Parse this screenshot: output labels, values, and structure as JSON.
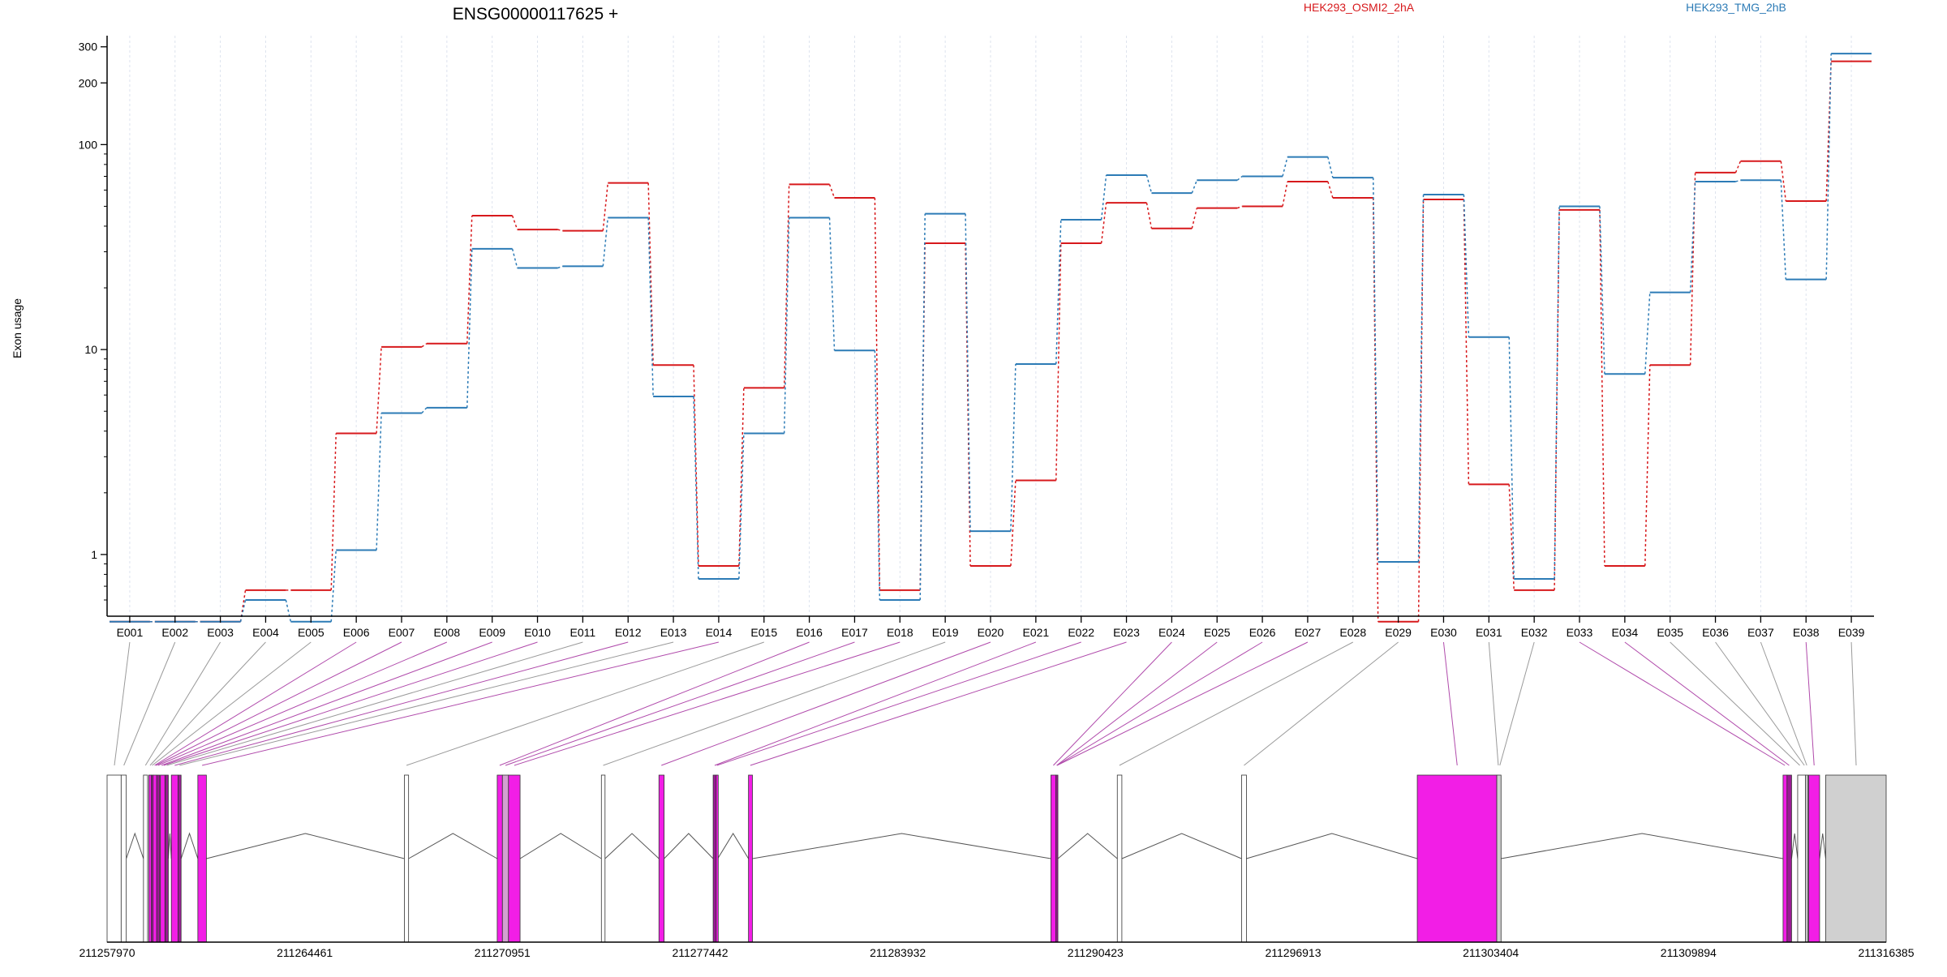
{
  "chart_data": {
    "type": "line",
    "title": "ENSG00000117625 +",
    "ylabel": "Exon usage",
    "yscale": "log",
    "ylim": [
      0.5,
      340
    ],
    "yticks": [
      1,
      10,
      100,
      200,
      300
    ],
    "categories": [
      "E001",
      "E002",
      "E003",
      "E004",
      "E005",
      "E006",
      "E007",
      "E008",
      "E009",
      "E010",
      "E011",
      "E012",
      "E013",
      "E014",
      "E015",
      "E016",
      "E017",
      "E018",
      "E019",
      "E020",
      "E021",
      "E022",
      "E023",
      "E024",
      "E025",
      "E026",
      "E027",
      "E028",
      "E029",
      "E030",
      "E031",
      "E032",
      "E033",
      "E034",
      "E035",
      "E036",
      "E037",
      "E038",
      "E039"
    ],
    "series": [
      {
        "name": "HEK293_OSMI2_2hA",
        "color": "#d7191c",
        "values": [
          0.47,
          0.47,
          0.47,
          0.67,
          0.67,
          3.9,
          10.3,
          10.7,
          45,
          38.5,
          38,
          65,
          8.4,
          0.88,
          6.5,
          64,
          55,
          0.67,
          33,
          0.88,
          2.3,
          33,
          52,
          39,
          49,
          50,
          66,
          55,
          0.47,
          54,
          2.2,
          0.67,
          48,
          0.88,
          8.4,
          73,
          83,
          53,
          255
        ]
      },
      {
        "name": "HEK293_TMG_2hB",
        "color": "#2c7bb6",
        "values": [
          0.47,
          0.47,
          0.47,
          0.6,
          0.47,
          1.05,
          4.9,
          5.2,
          31,
          25,
          25.5,
          44,
          5.9,
          0.76,
          3.9,
          44,
          9.9,
          0.6,
          46,
          1.3,
          8.5,
          43,
          71,
          58,
          67,
          70,
          87,
          69,
          0.92,
          57,
          11.5,
          0.76,
          50,
          7.6,
          19,
          66,
          67,
          22,
          278
        ]
      }
    ],
    "genomic_ticks": [
      "211257970",
      "211264461",
      "211270951",
      "211277442",
      "211283932",
      "211290423",
      "211296913",
      "211303404",
      "211309894",
      "211316385"
    ],
    "gene_range": [
      211257970,
      211316385
    ],
    "exons": [
      {
        "start": 211257970,
        "end": 211258432,
        "fill": "#ffffff"
      },
      {
        "start": 211258432,
        "end": 211258600,
        "fill": "#ffffff"
      },
      {
        "start": 211259165,
        "end": 211259300,
        "fill": "#ffffff"
      },
      {
        "start": 211259340,
        "end": 211259420,
        "fill": "#f21ee6"
      },
      {
        "start": 211259420,
        "end": 211259480,
        "fill": "#9a1a94"
      },
      {
        "start": 211259480,
        "end": 211259600,
        "fill": "#f21ee6"
      },
      {
        "start": 211259600,
        "end": 211259700,
        "fill": "#9a1a94"
      },
      {
        "start": 211259720,
        "end": 211259870,
        "fill": "#f21ee6"
      },
      {
        "start": 211259880,
        "end": 211259980,
        "fill": "#9a1a94"
      },
      {
        "start": 211260080,
        "end": 211260300,
        "fill": "#f21ee6"
      },
      {
        "start": 211260300,
        "end": 211260400,
        "fill": "#9a1a94"
      },
      {
        "start": 211260950,
        "end": 211261230,
        "fill": "#f21ee6"
      },
      {
        "start": 211267730,
        "end": 211267870,
        "fill": "#ffffff"
      },
      {
        "start": 211270780,
        "end": 211270950,
        "fill": "#f21ee6"
      },
      {
        "start": 211270950,
        "end": 211271150,
        "fill": "#d4a0d2"
      },
      {
        "start": 211271150,
        "end": 211271530,
        "fill": "#f21ee6"
      },
      {
        "start": 211274200,
        "end": 211274320,
        "fill": "#ffffff"
      },
      {
        "start": 211276090,
        "end": 211276260,
        "fill": "#f21ee6"
      },
      {
        "start": 211277870,
        "end": 211277970,
        "fill": "#9a1a94"
      },
      {
        "start": 211277970,
        "end": 211278020,
        "fill": "#f21ee6"
      },
      {
        "start": 211279030,
        "end": 211279160,
        "fill": "#f21ee6"
      },
      {
        "start": 211288960,
        "end": 211289120,
        "fill": "#f21ee6"
      },
      {
        "start": 211289120,
        "end": 211289190,
        "fill": "#9a1a94"
      },
      {
        "start": 211291140,
        "end": 211291290,
        "fill": "#ffffff"
      },
      {
        "start": 211295220,
        "end": 211295380,
        "fill": "#ffffff"
      },
      {
        "start": 211300990,
        "end": 211303600,
        "fill": "#f21ee6"
      },
      {
        "start": 211303600,
        "end": 211303740,
        "fill": "#d0d0d0"
      },
      {
        "start": 211313000,
        "end": 211313130,
        "fill": "#f21ee6"
      },
      {
        "start": 211313130,
        "end": 211313280,
        "fill": "#9a1a94"
      },
      {
        "start": 211313480,
        "end": 211313740,
        "fill": "#ffffff"
      },
      {
        "start": 211313740,
        "end": 211313820,
        "fill": "#d0d0d0"
      },
      {
        "start": 211313840,
        "end": 211314200,
        "fill": "#f21ee6"
      },
      {
        "start": 211314400,
        "end": 211316385,
        "fill": "#d0d0d0"
      }
    ],
    "exon_connections": [
      {
        "exon": "E001",
        "gpos": 211258210,
        "color": "#9a9a9a"
      },
      {
        "exon": "E002",
        "gpos": 211258520,
        "color": "#9a9a9a"
      },
      {
        "exon": "E003",
        "gpos": 211259230,
        "color": "#9a9a9a"
      },
      {
        "exon": "E004",
        "gpos": 211259380,
        "color": "#9a9a9a"
      },
      {
        "exon": "E005",
        "gpos": 211259450,
        "color": "#9a9a9a"
      },
      {
        "exon": "E006",
        "gpos": 211259530,
        "color": "#b04aab"
      },
      {
        "exon": "E007",
        "gpos": 211259570,
        "color": "#b04aab"
      },
      {
        "exon": "E008",
        "gpos": 211259640,
        "color": "#b04aab"
      },
      {
        "exon": "E009",
        "gpos": 211259760,
        "color": "#b04aab"
      },
      {
        "exon": "E010",
        "gpos": 211259830,
        "color": "#b04aab"
      },
      {
        "exon": "E011",
        "gpos": 211259930,
        "color": "#9a9a9a"
      },
      {
        "exon": "E012",
        "gpos": 211260190,
        "color": "#b04aab"
      },
      {
        "exon": "E013",
        "gpos": 211260350,
        "color": "#9a9a9a"
      },
      {
        "exon": "E014",
        "gpos": 211261090,
        "color": "#b04aab"
      },
      {
        "exon": "E015",
        "gpos": 211267800,
        "color": "#9a9a9a"
      },
      {
        "exon": "E016",
        "gpos": 211270860,
        "color": "#b04aab"
      },
      {
        "exon": "E017",
        "gpos": 211271050,
        "color": "#b04aab"
      },
      {
        "exon": "E018",
        "gpos": 211271340,
        "color": "#b04aab"
      },
      {
        "exon": "E019",
        "gpos": 211274260,
        "color": "#9a9a9a"
      },
      {
        "exon": "E020",
        "gpos": 211276170,
        "color": "#b04aab"
      },
      {
        "exon": "E021",
        "gpos": 211277920,
        "color": "#b04aab"
      },
      {
        "exon": "E022",
        "gpos": 211277995,
        "color": "#b04aab"
      },
      {
        "exon": "E023",
        "gpos": 211279090,
        "color": "#b04aab"
      },
      {
        "exon": "E024",
        "gpos": 211289040,
        "color": "#b04aab"
      },
      {
        "exon": "E025",
        "gpos": 211289150,
        "color": "#b04aab"
      },
      {
        "exon": "E026",
        "gpos": 211289155,
        "color": "#b04aab"
      },
      {
        "exon": "E027",
        "gpos": 211289160,
        "color": "#b04aab"
      },
      {
        "exon": "E028",
        "gpos": 211291210,
        "color": "#9a9a9a"
      },
      {
        "exon": "E029",
        "gpos": 211295300,
        "color": "#9a9a9a"
      },
      {
        "exon": "E030",
        "gpos": 211302300,
        "color": "#b04aab"
      },
      {
        "exon": "E031",
        "gpos": 211303650,
        "color": "#9a9a9a"
      },
      {
        "exon": "E032",
        "gpos": 211303700,
        "color": "#9a9a9a"
      },
      {
        "exon": "E033",
        "gpos": 211313060,
        "color": "#b04aab"
      },
      {
        "exon": "E034",
        "gpos": 211313200,
        "color": "#b04aab"
      },
      {
        "exon": "E035",
        "gpos": 211313550,
        "color": "#9a9a9a"
      },
      {
        "exon": "E036",
        "gpos": 211313700,
        "color": "#9a9a9a"
      },
      {
        "exon": "E037",
        "gpos": 211313780,
        "color": "#9a9a9a"
      },
      {
        "exon": "E038",
        "gpos": 211314020,
        "color": "#b04aab"
      },
      {
        "exon": "E039",
        "gpos": 211315400,
        "color": "#9a9a9a"
      }
    ],
    "grid": true,
    "legend": "top-right"
  }
}
